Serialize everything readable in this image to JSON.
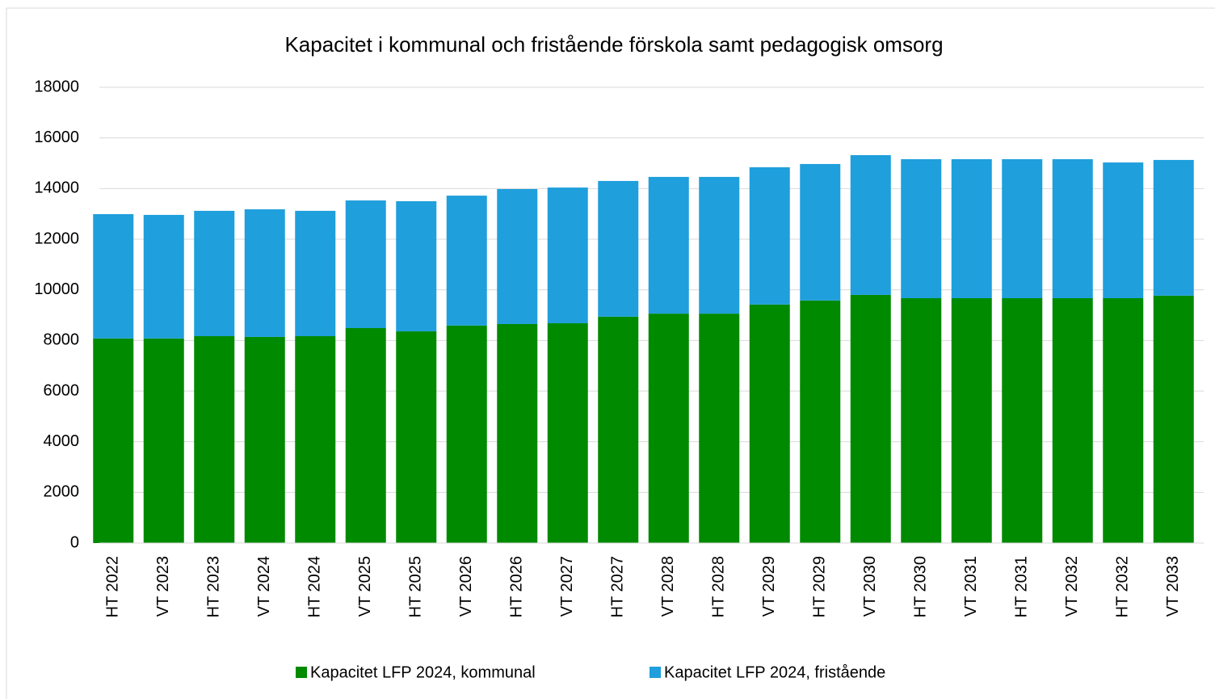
{
  "chart_data": {
    "type": "stacked_bar",
    "title": "Kapacitet i kommunal och fristående förskola samt pedagogisk omsorg",
    "categories": [
      "HT 2022",
      "VT 2023",
      "HT 2023",
      "VT 2024",
      "HT 2024",
      "VT 2025",
      "HT 2025",
      "VT 2026",
      "HT 2026",
      "VT 2027",
      "HT 2027",
      "VT 2028",
      "HT 2028",
      "VT 2029",
      "HT 2029",
      "VT 2030",
      "HT 2030",
      "VT 2031",
      "HT 2031",
      "VT 2032",
      "HT 2032",
      "VT 2033"
    ],
    "series": [
      {
        "name": "Kapacitet LFP 2024, kommunal",
        "color": "#008a00",
        "values": [
          8080,
          8080,
          8170,
          8140,
          8170,
          8490,
          8360,
          8590,
          8650,
          8680,
          8940,
          9060,
          9060,
          9420,
          9580,
          9800,
          9670,
          9670,
          9670,
          9670,
          9670,
          9770
        ]
      },
      {
        "name": "Kapacitet LFP 2024, fristående",
        "color": "#1f9fdc",
        "values": [
          4910,
          4880,
          4950,
          5040,
          4950,
          5040,
          5140,
          5130,
          5330,
          5360,
          5360,
          5400,
          5400,
          5420,
          5390,
          5520,
          5490,
          5490,
          5490,
          5490,
          5360,
          5360
        ]
      }
    ],
    "ylim": [
      0,
      18000
    ],
    "yticks": [
      0,
      2000,
      4000,
      6000,
      8000,
      10000,
      12000,
      14000,
      16000,
      18000
    ],
    "grid": true,
    "legend": "bottom"
  }
}
